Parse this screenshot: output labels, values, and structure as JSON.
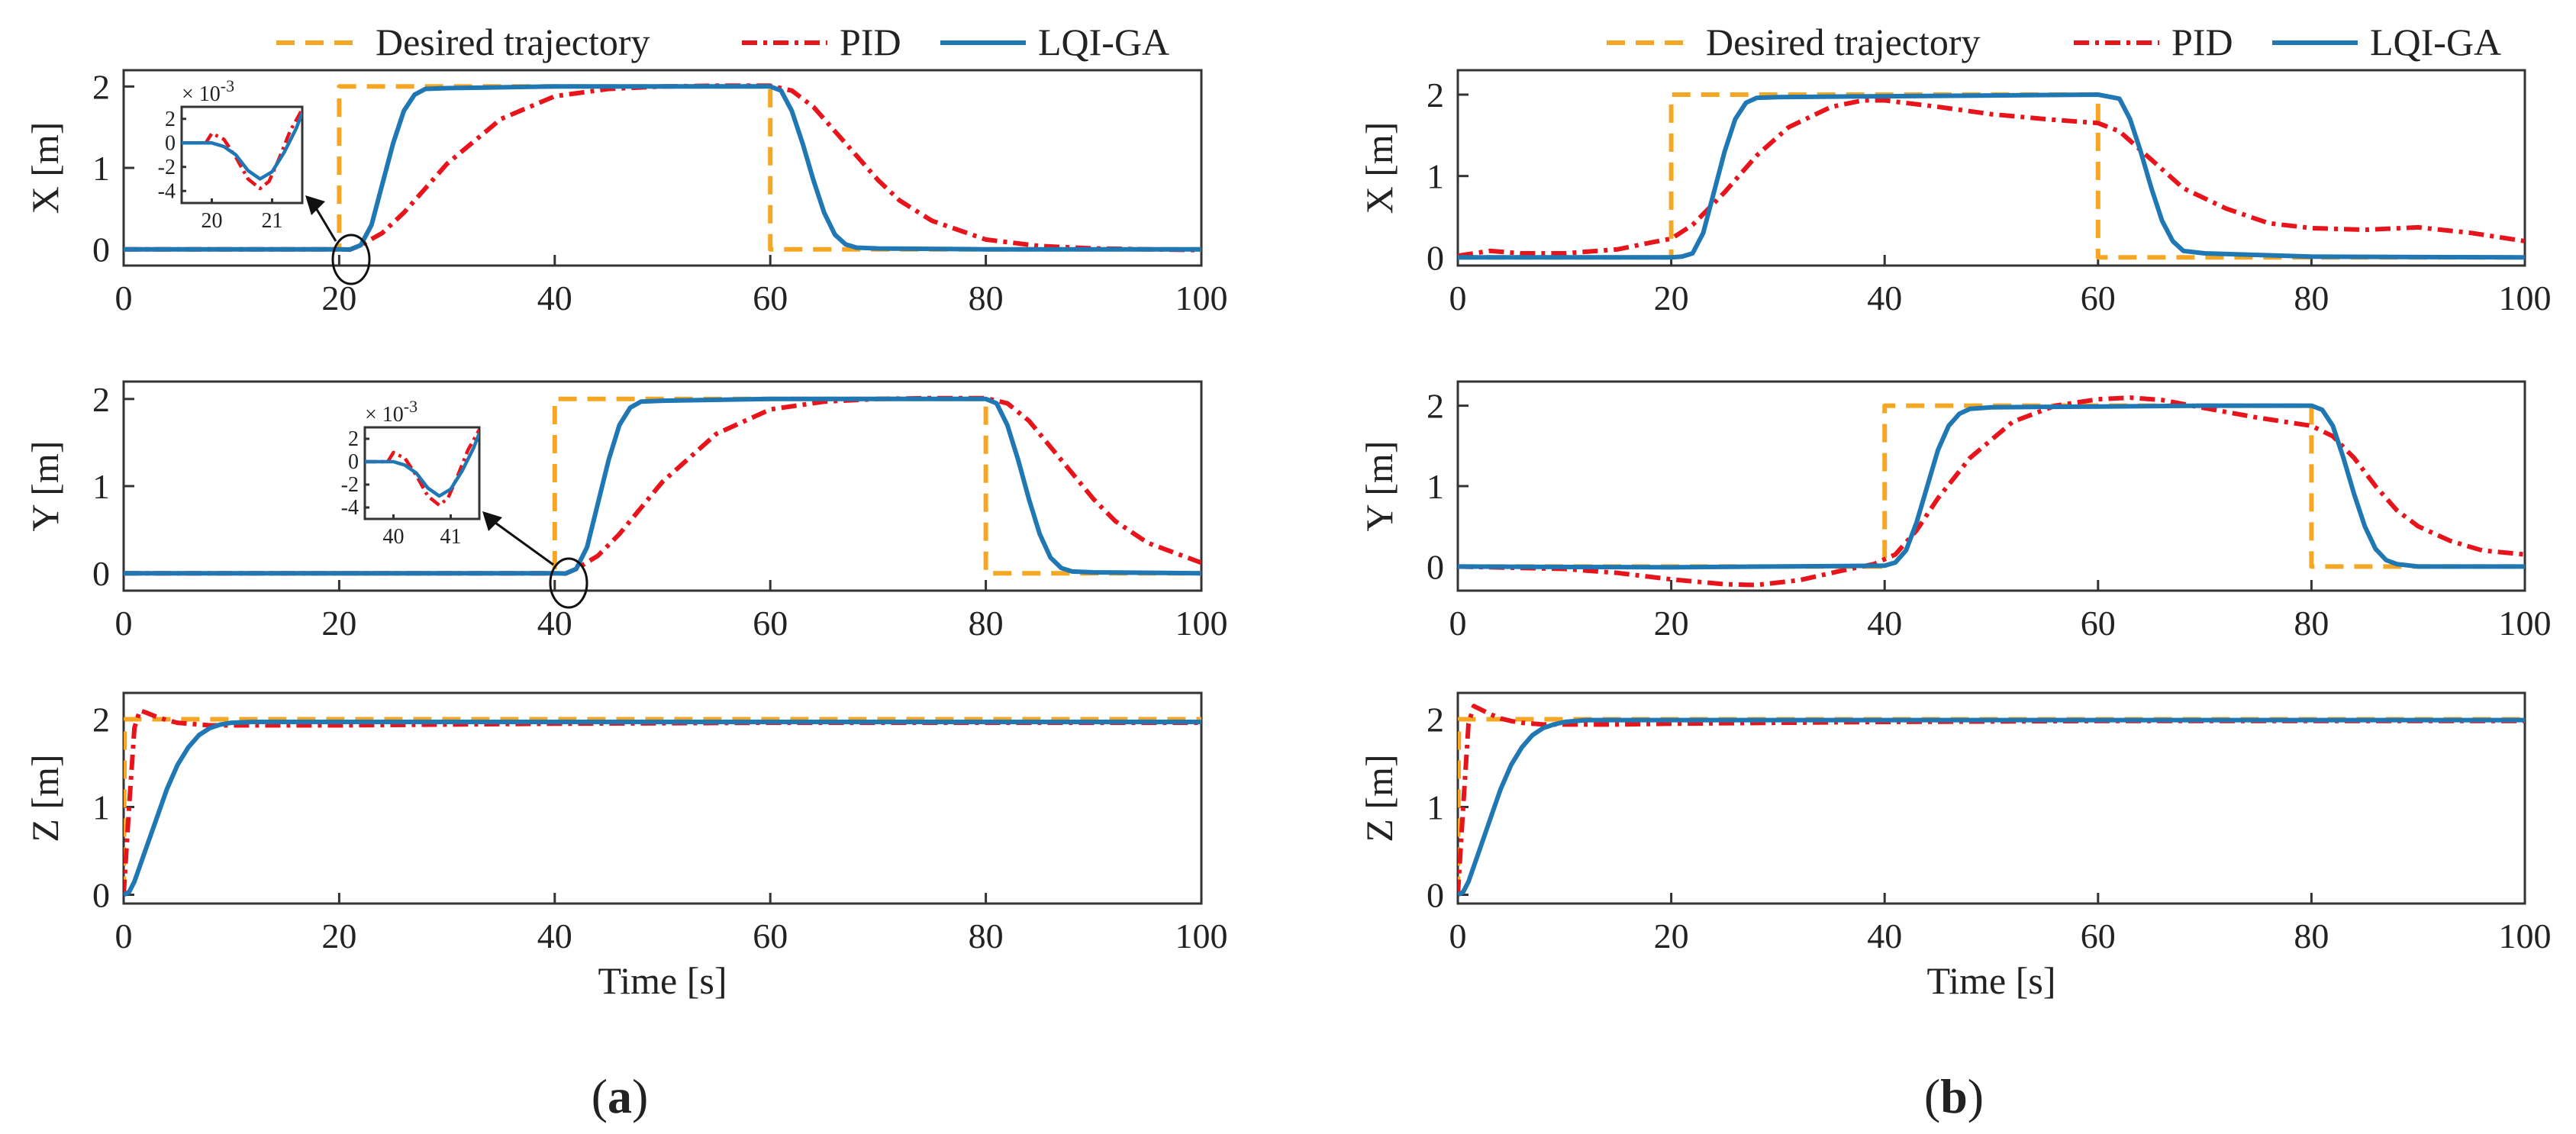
{
  "figure": {
    "panels": [
      {
        "id": "a",
        "label_open": "(",
        "label_letter": "a",
        "label_close": ")"
      },
      {
        "id": "b",
        "label_open": "(",
        "label_letter": "b",
        "label_close": ")"
      }
    ],
    "legend": {
      "desired": "Desired trajectory",
      "pid": "PID",
      "lqi": "LQI-GA"
    },
    "colors": {
      "desired": "#F5A623",
      "pid": "#E8141C",
      "lqi": "#1F77B4"
    }
  },
  "chart_data": [
    {
      "panel": "a",
      "axis": "X",
      "type": "line",
      "ylabel": "X [m]",
      "xlabel": "",
      "xlim": [
        0,
        100
      ],
      "ylim": [
        -0.2,
        2.2
      ],
      "xticks": [
        0,
        20,
        40,
        60,
        80,
        100
      ],
      "yticks": [
        0,
        1,
        2
      ],
      "series": [
        {
          "name": "Desired trajectory",
          "x": [
            0,
            20,
            20,
            60,
            60,
            100
          ],
          "values": [
            0,
            0,
            2,
            2,
            0,
            0
          ]
        },
        {
          "name": "PID",
          "x": [
            0,
            20,
            21,
            22,
            24,
            26,
            28,
            30,
            35,
            40,
            45,
            50,
            55,
            60,
            62,
            64,
            66,
            68,
            70,
            72,
            75,
            80,
            85,
            90,
            95,
            100
          ],
          "values": [
            0,
            0,
            -0.004,
            0.05,
            0.2,
            0.45,
            0.75,
            1.05,
            1.6,
            1.88,
            1.97,
            2.0,
            2.01,
            2.01,
            1.95,
            1.75,
            1.45,
            1.15,
            0.85,
            0.6,
            0.35,
            0.12,
            0.04,
            0.01,
            0.0,
            -0.01
          ]
        },
        {
          "name": "LQI-GA",
          "x": [
            0,
            20,
            21,
            22,
            23,
            24,
            25,
            26,
            27,
            28,
            30,
            40,
            50,
            60,
            61,
            62,
            63,
            64,
            65,
            66,
            67,
            68,
            70,
            80,
            100
          ],
          "values": [
            0,
            0,
            -0.003,
            0.05,
            0.3,
            0.8,
            1.3,
            1.7,
            1.9,
            1.97,
            1.98,
            2.0,
            2.0,
            2.0,
            1.95,
            1.7,
            1.3,
            0.85,
            0.45,
            0.18,
            0.06,
            0.02,
            0.01,
            0.0,
            0.0
          ]
        }
      ],
      "inset": {
        "xlim": [
          19.5,
          21.5
        ],
        "ylim": [
          -5,
          3
        ],
        "xticks": [
          20,
          21
        ],
        "yticks": [
          2,
          0,
          -2,
          -4
        ],
        "exponent": "× 10-3",
        "exp_base": "× 10",
        "exp_power": "-3",
        "source_x": 21,
        "source_y": 0,
        "series": [
          {
            "name": "PID",
            "x": [
              19.5,
              19.9,
              20.0,
              20.2,
              20.4,
              20.6,
              20.8,
              20.95,
              21.1,
              21.3,
              21.5
            ],
            "values": [
              0,
              0,
              0.8,
              0.3,
              -1.2,
              -3.0,
              -3.8,
              -3.2,
              -1.5,
              1.0,
              2.8
            ]
          },
          {
            "name": "LQI-GA",
            "x": [
              19.5,
              20.0,
              20.2,
              20.4,
              20.6,
              20.8,
              21.0,
              21.2,
              21.4,
              21.5
            ],
            "values": [
              0,
              0,
              -0.3,
              -1.0,
              -2.3,
              -3.0,
              -2.4,
              -0.8,
              1.2,
              2.5
            ]
          }
        ]
      }
    },
    {
      "panel": "a",
      "axis": "Y",
      "type": "line",
      "ylabel": "Y [m]",
      "xlabel": "",
      "xlim": [
        0,
        100
      ],
      "ylim": [
        -0.2,
        2.2
      ],
      "xticks": [
        0,
        20,
        40,
        60,
        80,
        100
      ],
      "yticks": [
        0,
        1,
        2
      ],
      "series": [
        {
          "name": "Desired trajectory",
          "x": [
            0,
            40,
            40,
            80,
            80,
            100
          ],
          "values": [
            0,
            0,
            2,
            2,
            0,
            0
          ]
        },
        {
          "name": "PID",
          "x": [
            0,
            40,
            41,
            42,
            44,
            46,
            48,
            50,
            55,
            60,
            65,
            70,
            75,
            80,
            82,
            84,
            86,
            88,
            90,
            92,
            95,
            100
          ],
          "values": [
            0,
            0,
            -0.004,
            0.05,
            0.2,
            0.45,
            0.75,
            1.05,
            1.6,
            1.88,
            1.97,
            2.0,
            2.01,
            2.01,
            1.95,
            1.75,
            1.45,
            1.15,
            0.85,
            0.6,
            0.35,
            0.12
          ]
        },
        {
          "name": "LQI-GA",
          "x": [
            0,
            40,
            41,
            42,
            43,
            44,
            45,
            46,
            47,
            48,
            50,
            60,
            70,
            80,
            81,
            82,
            83,
            84,
            85,
            86,
            87,
            88,
            90,
            100
          ],
          "values": [
            0,
            0,
            -0.003,
            0.05,
            0.3,
            0.8,
            1.3,
            1.7,
            1.9,
            1.97,
            1.98,
            2.0,
            2.0,
            2.0,
            1.95,
            1.7,
            1.3,
            0.85,
            0.45,
            0.18,
            0.06,
            0.02,
            0.01,
            0.0
          ]
        }
      ],
      "inset": {
        "xlim": [
          39.5,
          41.5
        ],
        "ylim": [
          -5,
          3
        ],
        "xticks": [
          40,
          41
        ],
        "yticks": [
          2,
          0,
          -2,
          -4
        ],
        "exponent": "× 10-3",
        "exp_base": "× 10",
        "exp_power": "-3",
        "source_x": 41,
        "source_y": 0,
        "series": [
          {
            "name": "PID",
            "x": [
              39.5,
              39.9,
              40.0,
              40.2,
              40.4,
              40.6,
              40.8,
              40.95,
              41.1,
              41.3,
              41.5
            ],
            "values": [
              0,
              0,
              0.8,
              0.3,
              -1.2,
              -3.0,
              -3.8,
              -3.2,
              -1.5,
              1.0,
              2.8
            ]
          },
          {
            "name": "LQI-GA",
            "x": [
              39.5,
              40.0,
              40.2,
              40.4,
              40.6,
              40.8,
              41.0,
              41.2,
              41.4,
              41.5
            ],
            "values": [
              0,
              0,
              -0.3,
              -1.0,
              -2.3,
              -3.0,
              -2.4,
              -0.8,
              1.2,
              2.5
            ]
          }
        ]
      }
    },
    {
      "panel": "a",
      "axis": "Z",
      "type": "line",
      "ylabel": "Z [m]",
      "xlabel": "Time [s]",
      "xlim": [
        0,
        100
      ],
      "ylim": [
        -0.1,
        2.3
      ],
      "xticks": [
        0,
        20,
        40,
        60,
        80,
        100
      ],
      "yticks": [
        0,
        1,
        2
      ],
      "series": [
        {
          "name": "Desired trajectory",
          "x": [
            0,
            0.1,
            100
          ],
          "values": [
            0,
            2,
            2
          ]
        },
        {
          "name": "PID",
          "x": [
            0,
            0.5,
            1.0,
            1.5,
            2.0,
            3,
            4,
            5,
            6,
            8,
            10,
            15,
            20,
            40,
            60,
            80,
            100
          ],
          "values": [
            0,
            1.0,
            1.9,
            2.1,
            2.08,
            2.03,
            1.99,
            1.96,
            1.95,
            1.93,
            1.93,
            1.93,
            1.93,
            1.95,
            1.96,
            1.96,
            1.96
          ]
        },
        {
          "name": "LQI-GA",
          "x": [
            0,
            0.5,
            1,
            2,
            3,
            4,
            5,
            6,
            7,
            8,
            9,
            10,
            12,
            15,
            20,
            40,
            60,
            80,
            100
          ],
          "values": [
            0,
            0.03,
            0.15,
            0.5,
            0.85,
            1.2,
            1.48,
            1.68,
            1.82,
            1.9,
            1.94,
            1.96,
            1.97,
            1.97,
            1.97,
            1.97,
            1.97,
            1.97,
            1.97
          ]
        }
      ]
    },
    {
      "panel": "b",
      "axis": "X",
      "type": "line",
      "ylabel": "X [m]",
      "xlabel": "",
      "xlim": [
        0,
        100
      ],
      "ylim": [
        -0.1,
        2.3
      ],
      "xticks": [
        0,
        20,
        40,
        60,
        80,
        100
      ],
      "yticks": [
        0,
        1,
        2
      ],
      "series": [
        {
          "name": "Desired trajectory",
          "x": [
            0,
            20,
            20,
            60,
            60,
            100
          ],
          "values": [
            0,
            0,
            2,
            2,
            0,
            0
          ]
        },
        {
          "name": "PID",
          "x": [
            0,
            3,
            6,
            10,
            15,
            18,
            20,
            22,
            25,
            28,
            31,
            35,
            38,
            40,
            45,
            50,
            55,
            60,
            62,
            65,
            68,
            72,
            76,
            80,
            85,
            90,
            95,
            100
          ],
          "values": [
            0.02,
            0.08,
            0.05,
            0.05,
            0.1,
            0.18,
            0.23,
            0.4,
            0.8,
            1.25,
            1.6,
            1.85,
            1.93,
            1.93,
            1.85,
            1.76,
            1.7,
            1.65,
            1.55,
            1.2,
            0.85,
            0.6,
            0.42,
            0.36,
            0.34,
            0.37,
            0.3,
            0.2
          ]
        },
        {
          "name": "LQI-GA",
          "x": [
            0,
            20,
            21,
            22,
            23,
            24,
            25,
            26,
            27,
            28,
            30,
            40,
            50,
            60,
            62,
            63,
            64,
            65,
            66,
            67,
            68,
            70,
            75,
            80,
            100
          ],
          "values": [
            0,
            0,
            0.01,
            0.05,
            0.3,
            0.8,
            1.3,
            1.7,
            1.9,
            1.96,
            1.97,
            1.98,
            1.99,
            2.0,
            1.95,
            1.7,
            1.3,
            0.85,
            0.45,
            0.2,
            0.08,
            0.05,
            0.03,
            0.01,
            0.0
          ]
        }
      ]
    },
    {
      "panel": "b",
      "axis": "Y",
      "type": "line",
      "ylabel": "Y [m]",
      "xlabel": "",
      "xlim": [
        0,
        100
      ],
      "ylim": [
        -0.3,
        2.3
      ],
      "xticks": [
        0,
        20,
        40,
        60,
        80,
        100
      ],
      "yticks": [
        0,
        1,
        2
      ],
      "series": [
        {
          "name": "Desired trajectory",
          "x": [
            0,
            40,
            40,
            80,
            80,
            100
          ],
          "values": [
            0,
            0,
            2,
            2,
            0,
            0
          ]
        },
        {
          "name": "PID",
          "x": [
            0,
            10,
            15,
            20,
            25,
            28,
            32,
            36,
            39,
            41,
            43,
            45,
            48,
            52,
            56,
            60,
            63,
            66,
            70,
            75,
            80,
            82,
            84,
            86,
            88,
            90,
            93,
            96,
            100
          ],
          "values": [
            0,
            -0.03,
            -0.08,
            -0.16,
            -0.22,
            -0.23,
            -0.17,
            -0.05,
            0.03,
            0.15,
            0.45,
            0.85,
            1.35,
            1.8,
            2.0,
            2.08,
            2.1,
            2.07,
            1.97,
            1.85,
            1.75,
            1.62,
            1.35,
            1.0,
            0.7,
            0.5,
            0.32,
            0.2,
            0.15
          ]
        },
        {
          "name": "LQI-GA",
          "x": [
            0,
            20,
            40,
            41,
            42,
            43,
            44,
            45,
            46,
            47,
            48,
            50,
            60,
            70,
            80,
            81,
            82,
            83,
            84,
            85,
            86,
            87,
            88,
            90,
            100
          ],
          "values": [
            0,
            -0.01,
            0.01,
            0.05,
            0.2,
            0.55,
            1.0,
            1.45,
            1.75,
            1.9,
            1.96,
            1.98,
            1.99,
            2.0,
            2.0,
            1.95,
            1.75,
            1.35,
            0.9,
            0.5,
            0.22,
            0.08,
            0.03,
            0.0,
            0.0
          ]
        }
      ]
    },
    {
      "panel": "b",
      "axis": "Z",
      "type": "line",
      "ylabel": "Z [m]",
      "xlabel": "Time [s]",
      "xlim": [
        0,
        100
      ],
      "ylim": [
        -0.1,
        2.3
      ],
      "xticks": [
        0,
        20,
        40,
        60,
        80,
        100
      ],
      "yticks": [
        0,
        1,
        2
      ],
      "series": [
        {
          "name": "Desired trajectory",
          "x": [
            0,
            0.1,
            100
          ],
          "values": [
            0,
            2,
            2
          ]
        },
        {
          "name": "PID",
          "x": [
            0,
            0.5,
            1.0,
            1.5,
            2.0,
            3,
            4,
            5,
            6,
            8,
            10,
            15,
            20,
            40,
            60,
            80,
            100
          ],
          "values": [
            0,
            1.0,
            1.95,
            2.15,
            2.12,
            2.06,
            2.01,
            1.98,
            1.96,
            1.94,
            1.94,
            1.94,
            1.95,
            1.97,
            1.98,
            1.98,
            1.98
          ]
        },
        {
          "name": "LQI-GA",
          "x": [
            0,
            0.5,
            1,
            2,
            3,
            4,
            5,
            6,
            7,
            8,
            9,
            10,
            12,
            15,
            20,
            40,
            60,
            80,
            100
          ],
          "values": [
            0,
            0.03,
            0.15,
            0.5,
            0.85,
            1.2,
            1.48,
            1.68,
            1.82,
            1.9,
            1.94,
            1.97,
            1.99,
            1.99,
            1.99,
            1.99,
            1.99,
            1.99,
            1.99
          ]
        }
      ]
    }
  ]
}
